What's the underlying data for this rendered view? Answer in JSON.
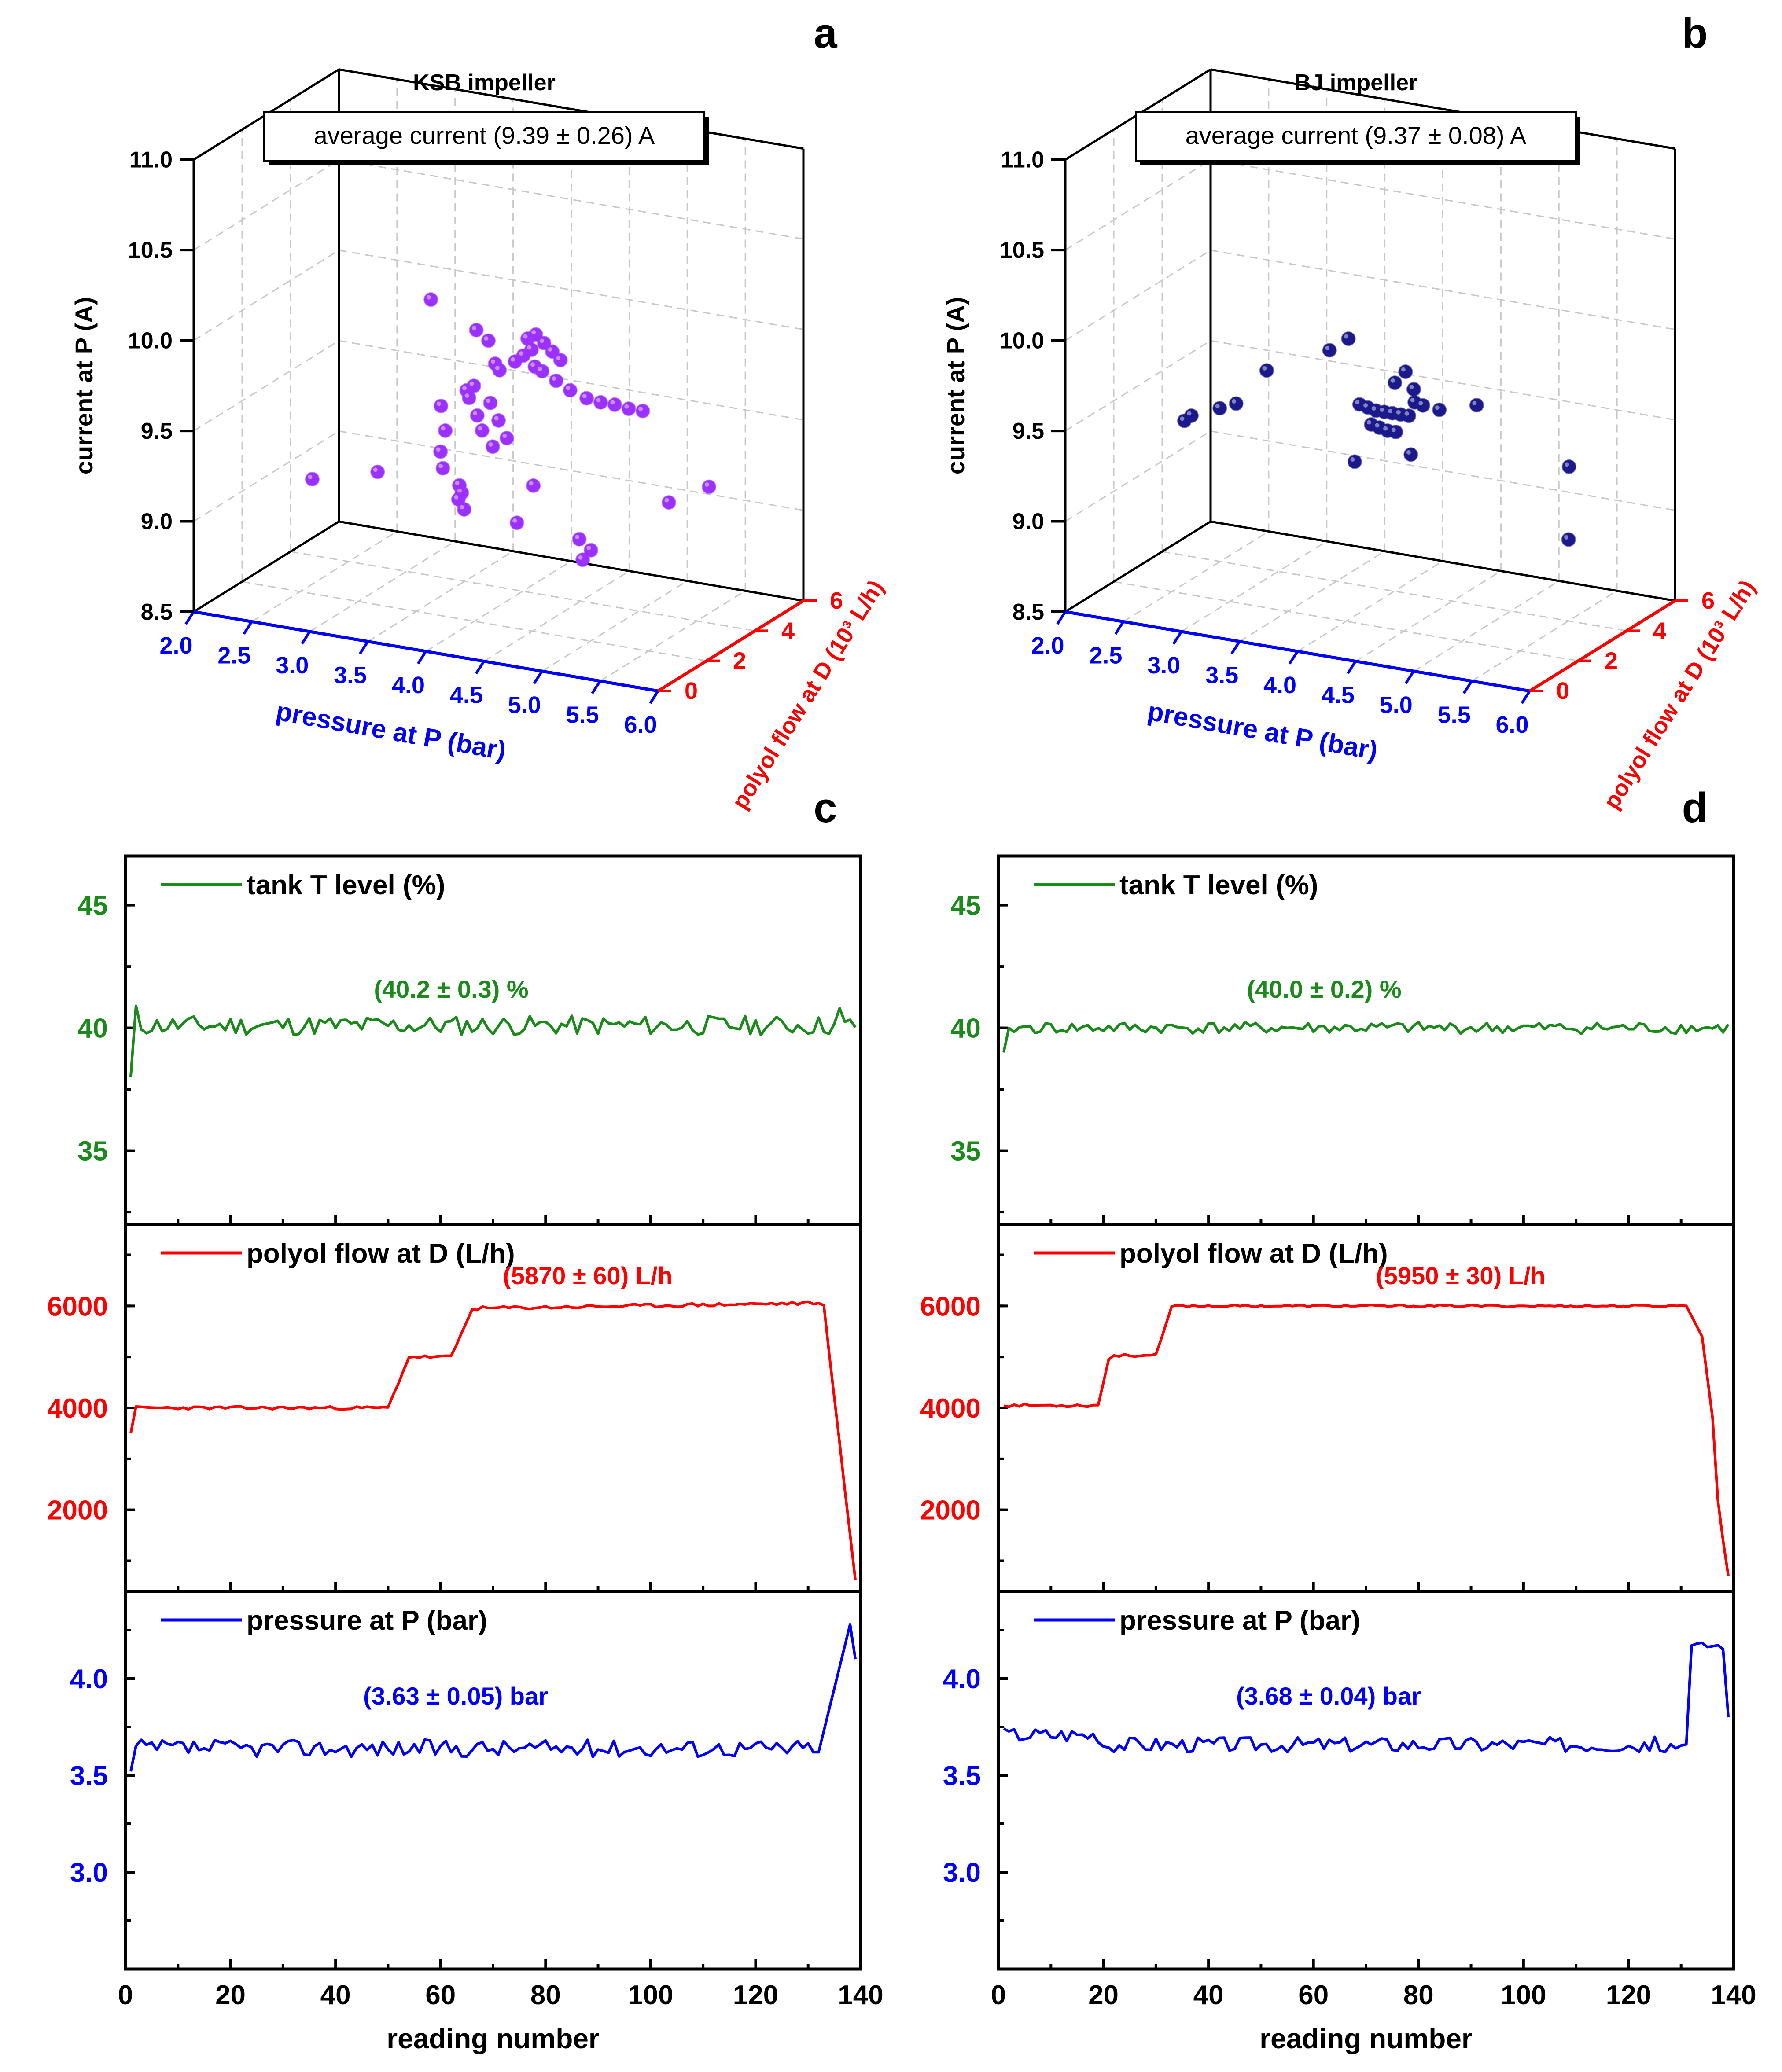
{
  "panels": {
    "a": {
      "label": "a",
      "title": "KSB impeller",
      "annotation": "average current (9.39 ± 0.26) A"
    },
    "b": {
      "label": "b",
      "title": "BJ impeller",
      "annotation": "average current (9.37 ± 0.08) A"
    },
    "c": {
      "label": "c"
    },
    "d": {
      "label": "d"
    }
  },
  "colors": {
    "ksb_points": "#9b30ff",
    "bj_points": "#1a1a8c",
    "tank": "#1a8a1a",
    "polyol": "#ff0000",
    "pressure": "#0000ff",
    "pressure_axis_3d": "#0000ff",
    "polyol_axis_3d": "#ff0000"
  },
  "chart_data": [
    {
      "id": "a",
      "type": "scatter3d",
      "title": "KSB impeller",
      "xlabel": "pressure at P (bar)",
      "ylabel": "polyol flow at D (10³ L/h)",
      "zlabel": "current at P (A)",
      "x_ticks": [
        "2.0",
        "2.5",
        "3.0",
        "3.5",
        "4.0",
        "4.5",
        "5.0",
        "5.5",
        "6.0"
      ],
      "y_ticks": [
        "0",
        "2",
        "4",
        "6"
      ],
      "z_ticks": [
        "8.5",
        "9.0",
        "9.5",
        "10.0",
        "10.5",
        "11.0"
      ],
      "xlim": [
        2.0,
        6.0
      ],
      "ylim": [
        0,
        6
      ],
      "zlim": [
        8.5,
        11.0
      ],
      "annotation": "average current (9.39 ± 0.26) A",
      "points": [
        [
          2.5,
          2.5,
          9.08
        ],
        [
          3.0,
          2.8,
          9.15
        ],
        [
          3.0,
          5.0,
          9.92
        ],
        [
          3.6,
          4.0,
          9.9
        ],
        [
          3.6,
          4.5,
          9.8
        ],
        [
          3.7,
          4.3,
          9.7
        ],
        [
          3.4,
          3.5,
          9.5
        ],
        [
          3.5,
          3.2,
          9.4
        ],
        [
          3.5,
          3.0,
          9.3
        ],
        [
          3.5,
          3.1,
          9.2
        ],
        [
          3.6,
          3.3,
          9.1
        ],
        [
          3.6,
          3.4,
          9.05
        ],
        [
          3.6,
          3.6,
          9.6
        ],
        [
          3.6,
          3.7,
          9.55
        ],
        [
          3.65,
          3.8,
          9.45
        ],
        [
          3.65,
          4.0,
          9.35
        ],
        [
          3.7,
          4.2,
          9.25
        ],
        [
          3.55,
          3.5,
          9.0
        ],
        [
          3.6,
          3.5,
          8.95
        ],
        [
          4.0,
          4.5,
          9.7
        ],
        [
          4.0,
          4.8,
          9.65
        ],
        [
          4.1,
          4.9,
          9.6
        ],
        [
          4.2,
          5.0,
          9.55
        ],
        [
          4.3,
          5.2,
          9.5
        ],
        [
          4.4,
          5.3,
          9.48
        ],
        [
          4.5,
          5.4,
          9.47
        ],
        [
          4.6,
          5.5,
          9.45
        ],
        [
          4.7,
          5.6,
          9.44
        ],
        [
          4.2,
          4.6,
          9.75
        ],
        [
          4.15,
          4.5,
          9.8
        ],
        [
          4.1,
          4.4,
          9.85
        ],
        [
          4.05,
          4.3,
          9.9
        ],
        [
          4.0,
          4.2,
          9.88
        ],
        [
          4.3,
          3.0,
          9.2
        ],
        [
          4.2,
          2.8,
          9.0
        ],
        [
          4.8,
          2.5,
          9.0
        ],
        [
          4.9,
          2.5,
          8.95
        ],
        [
          4.85,
          2.4,
          8.9
        ],
        [
          5.3,
          3.8,
          9.15
        ],
        [
          5.5,
          4.5,
          9.2
        ],
        [
          3.6,
          3.9,
          9.6
        ],
        [
          3.7,
          4.1,
          9.5
        ],
        [
          3.75,
          4.2,
          9.4
        ],
        [
          3.8,
          4.3,
          9.3
        ],
        [
          3.8,
          4.0,
          9.7
        ],
        [
          3.85,
          4.4,
          9.72
        ],
        [
          3.9,
          4.5,
          9.75
        ],
        [
          3.95,
          4.6,
          9.78
        ]
      ]
    },
    {
      "id": "b",
      "type": "scatter3d",
      "title": "BJ impeller",
      "xlabel": "pressure at P (bar)",
      "ylabel": "polyol flow at D (10³ L/h)",
      "zlabel": "current at P (A)",
      "x_ticks": [
        "2.0",
        "2.5",
        "3.0",
        "3.5",
        "4.0",
        "4.5",
        "5.0",
        "5.5",
        "6.0"
      ],
      "y_ticks": [
        "0",
        "2",
        "4",
        "6"
      ],
      "z_ticks": [
        "8.5",
        "9.0",
        "9.5",
        "10.0",
        "10.5",
        "11.0"
      ],
      "xlim": [
        2.0,
        6.0
      ],
      "ylim": [
        0,
        6
      ],
      "zlim": [
        8.5,
        11.0
      ],
      "annotation": "average current (9.37 ± 0.08) A",
      "points": [
        [
          2.4,
          3.0,
          9.35
        ],
        [
          2.45,
          3.05,
          9.38
        ],
        [
          2.6,
          3.5,
          9.4
        ],
        [
          2.7,
          3.7,
          9.42
        ],
        [
          2.9,
          4.0,
          9.6
        ],
        [
          3.4,
          4.2,
          9.75
        ],
        [
          3.5,
          4.5,
          9.8
        ],
        [
          3.7,
          4.0,
          9.5
        ],
        [
          3.75,
          4.1,
          9.48
        ],
        [
          3.8,
          4.2,
          9.46
        ],
        [
          3.85,
          4.3,
          9.45
        ],
        [
          3.9,
          4.4,
          9.44
        ],
        [
          3.95,
          4.5,
          9.43
        ],
        [
          4.0,
          4.6,
          9.42
        ],
        [
          3.8,
          4.0,
          9.4
        ],
        [
          3.85,
          4.1,
          9.38
        ],
        [
          3.9,
          4.2,
          9.36
        ],
        [
          3.95,
          4.3,
          9.35
        ],
        [
          3.9,
          4.5,
          9.6
        ],
        [
          3.95,
          4.7,
          9.65
        ],
        [
          4.0,
          4.8,
          9.55
        ],
        [
          4.05,
          4.6,
          9.5
        ],
        [
          4.1,
          4.7,
          9.48
        ],
        [
          4.2,
          4.9,
          9.45
        ],
        [
          3.7,
          3.8,
          9.2
        ],
        [
          4.1,
          4.2,
          9.25
        ],
        [
          4.5,
          5.0,
          9.5
        ],
        [
          5.4,
          4.5,
          9.3
        ],
        [
          5.5,
          4.0,
          8.95
        ]
      ]
    },
    {
      "id": "c",
      "type": "line",
      "xlabel": "reading number",
      "x_ticks": [
        0,
        20,
        40,
        60,
        80,
        100,
        120,
        140
      ],
      "xlim": [
        0,
        140
      ],
      "subplots": [
        {
          "name": "tank T level (%)",
          "color": "#1a8a1a",
          "ylim": [
            32,
            47
          ],
          "yticks": [
            35,
            40,
            45
          ],
          "annotation": "(40.2 ± 0.3) %",
          "series_kind": "tank",
          "mean": 40.1,
          "noise": 0.25,
          "seed": 11,
          "start": 38.0,
          "startpeak": 40.9
        },
        {
          "name": "polyol flow at D (L/h)",
          "color": "#ff0000",
          "ylim": [
            400,
            7600
          ],
          "yticks": [
            2000,
            4000,
            6000
          ],
          "annotation": "(5870 ± 60) L/h",
          "series_kind": "flowc",
          "seed": 23
        },
        {
          "name": "pressure at P (bar)",
          "color": "#0000ff",
          "ylim": [
            2.5,
            4.45
          ],
          "yticks": [
            3.0,
            3.5,
            4.0
          ],
          "annotation": "(3.63 ± 0.05) bar",
          "series_kind": "pressc",
          "seed": 37
        }
      ]
    },
    {
      "id": "d",
      "type": "line",
      "xlabel": "reading number",
      "x_ticks": [
        0,
        20,
        40,
        60,
        80,
        100,
        120,
        140
      ],
      "xlim": [
        0,
        140
      ],
      "subplots": [
        {
          "name": "tank T level (%)",
          "color": "#1a8a1a",
          "ylim": [
            32,
            47
          ],
          "yticks": [
            35,
            40,
            45
          ],
          "annotation": "(40.0 ± 0.2) %",
          "series_kind": "tank",
          "mean": 40.0,
          "noise": 0.15,
          "seed": 41,
          "start": 39.0,
          "startpeak": 40.0
        },
        {
          "name": "polyol flow at D (L/h)",
          "color": "#ff0000",
          "ylim": [
            400,
            7600
          ],
          "yticks": [
            2000,
            4000,
            6000
          ],
          "annotation": "(5950 ± 30) L/h",
          "series_kind": "flowd",
          "seed": 53
        },
        {
          "name": "pressure at P (bar)",
          "color": "#0000ff",
          "ylim": [
            2.5,
            4.45
          ],
          "yticks": [
            3.0,
            3.5,
            4.0
          ],
          "annotation": "(3.68 ± 0.04) bar",
          "series_kind": "pressd",
          "seed": 67
        }
      ]
    }
  ]
}
